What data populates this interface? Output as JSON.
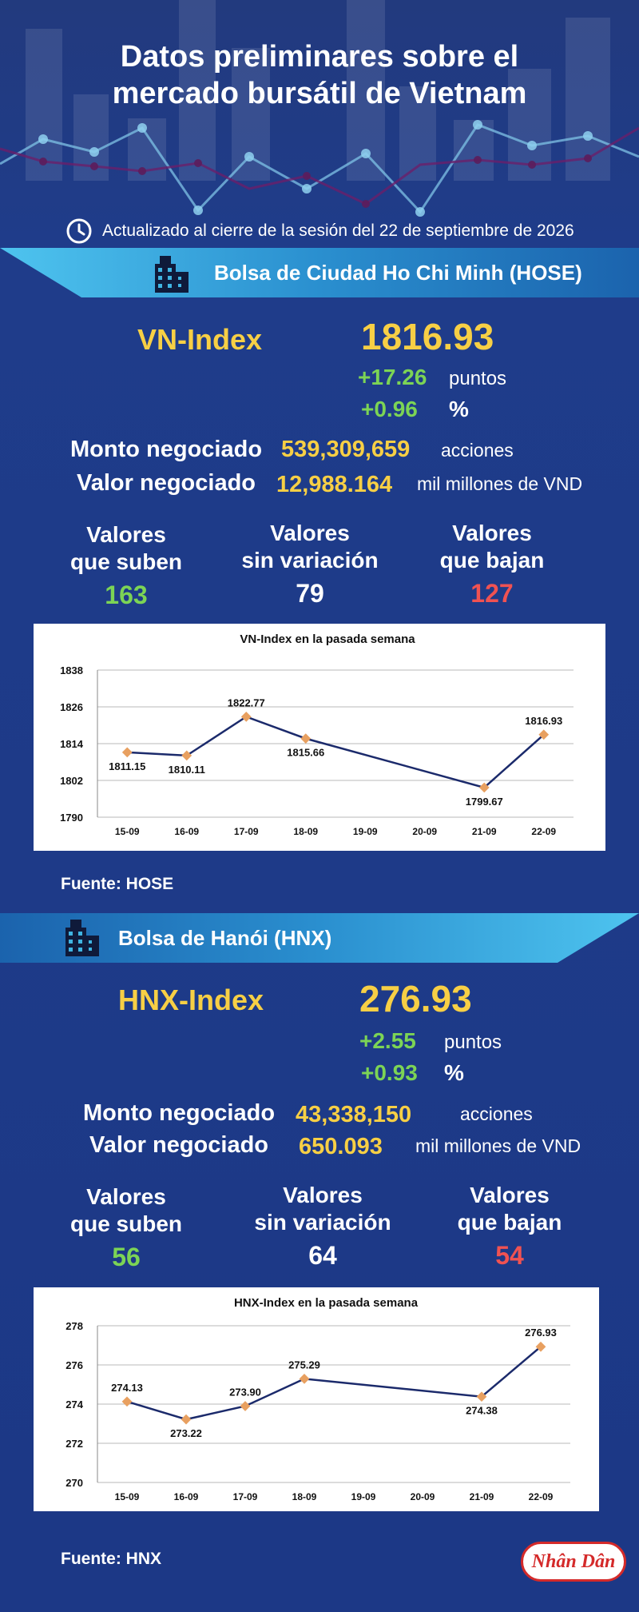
{
  "header": {
    "title_line1": "Datos preliminares sobre el",
    "title_line2": "mercado bursátil de Vietnam",
    "updated": "Actualizado al cierre de la sesión del 22 de septiembre de 2026"
  },
  "hose": {
    "banner": "Bolsa de Ciudad Ho Chi Minh (HOSE)",
    "index_name": "VN-Index",
    "index_value": "1816.93",
    "change_points": "+17.26",
    "points_unit": "puntos",
    "change_pct": "+0.96",
    "pct_unit": "%",
    "volume_label": "Monto negociado",
    "volume_value": "539,309,659",
    "volume_unit": "acciones",
    "value_label": "Valor negociado",
    "value_value": "12,988.164",
    "value_unit": "mil millones de VND",
    "up_label1": "Valores",
    "up_label2": "que suben",
    "up_count": "163",
    "flat_label1": "Valores",
    "flat_label2": "sin variación",
    "flat_count": "79",
    "down_label1": "Valores",
    "down_label2": "que bajan",
    "down_count": "127",
    "source": "Fuente: HOSE"
  },
  "hnx": {
    "banner": "Bolsa de Hanói (HNX)",
    "index_name": "HNX-Index",
    "index_value": "276.93",
    "change_points": "+2.55",
    "points_unit": "puntos",
    "change_pct": "+0.93",
    "pct_unit": "%",
    "volume_label": "Monto negociado",
    "volume_value": "43,338,150",
    "volume_unit": "acciones",
    "value_label": "Valor negociado",
    "value_value": "650.093",
    "value_unit": "mil millones de VND",
    "up_label1": "Valores",
    "up_label2": "que suben",
    "up_count": "56",
    "flat_label1": "Valores",
    "flat_label2": "sin variación",
    "flat_count": "64",
    "down_label1": "Valores",
    "down_label2": "que bajan",
    "down_count": "54",
    "source": "Fuente:  HNX"
  },
  "logo": {
    "text": "Nhân Dân"
  },
  "colors": {
    "background": "#1d3a86",
    "accent_yellow": "#f7cf45",
    "up_green": "#7cd455",
    "down_red": "#f05252",
    "banner_cyan": "#3fb4e2",
    "line_navy": "#1b2a6b",
    "marker_orange": "#e8a060"
  },
  "chart_data": [
    {
      "type": "line",
      "title": "VN-Index en la pasada semana",
      "categories": [
        "15-09",
        "16-09",
        "17-09",
        "18-09",
        "19-09",
        "20-09",
        "21-09",
        "22-09"
      ],
      "points": [
        {
          "x": "15-09",
          "y": 1811.15,
          "label": "1811.15"
        },
        {
          "x": "16-09",
          "y": 1810.11,
          "label": "1810.11"
        },
        {
          "x": "17-09",
          "y": 1822.77,
          "label": "1822.77"
        },
        {
          "x": "18-09",
          "y": 1815.66,
          "label": "1815.66"
        },
        {
          "x": "21-09",
          "y": 1799.67,
          "label": "1799.67"
        },
        {
          "x": "22-09",
          "y": 1816.93,
          "label": "1816.93"
        }
      ],
      "label_position": [
        "below",
        "below",
        "above",
        "below",
        "below",
        "above"
      ],
      "ylim": [
        1790,
        1838
      ],
      "yticks": [
        "1790",
        "1802",
        "1814",
        "1826",
        "1838"
      ],
      "grid": true
    },
    {
      "type": "line",
      "title": "HNX-Index en la pasada semana",
      "categories": [
        "15-09",
        "16-09",
        "17-09",
        "18-09",
        "19-09",
        "20-09",
        "21-09",
        "22-09"
      ],
      "points": [
        {
          "x": "15-09",
          "y": 274.13,
          "label": "274.13"
        },
        {
          "x": "16-09",
          "y": 273.22,
          "label": "273.22"
        },
        {
          "x": "17-09",
          "y": 273.9,
          "label": "273.90"
        },
        {
          "x": "18-09",
          "y": 275.29,
          "label": "275.29"
        },
        {
          "x": "21-09",
          "y": 274.38,
          "label": "274.38"
        },
        {
          "x": "22-09",
          "y": 276.93,
          "label": "276.93"
        }
      ],
      "label_position": [
        "above",
        "below",
        "above",
        "above",
        "below",
        "above"
      ],
      "ylim": [
        270,
        278
      ],
      "yticks": [
        "270",
        "272",
        "274",
        "276",
        "278"
      ],
      "grid": true
    }
  ]
}
